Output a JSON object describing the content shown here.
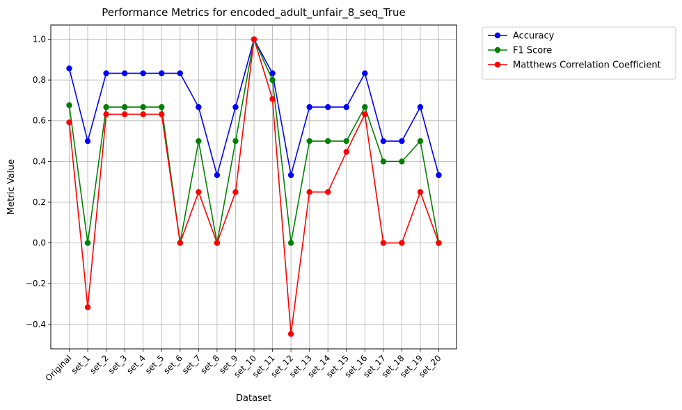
{
  "chart_data": {
    "type": "line",
    "title": "Performance Metrics for encoded_adult_unfair_8_seq_True",
    "xlabel": "Dataset",
    "ylabel": "Metric Value",
    "categories": [
      "Original",
      "set_1",
      "set_2",
      "set_3",
      "set_4",
      "set_5",
      "set_6",
      "set_7",
      "set_8",
      "set_9",
      "set_10",
      "set_11",
      "set_12",
      "set_13",
      "set_14",
      "set_15",
      "set_16",
      "set_17",
      "set_18",
      "set_19",
      "set_20"
    ],
    "ylim": [
      -0.52,
      1.07
    ],
    "yticks": [
      -0.4,
      -0.2,
      0.0,
      0.2,
      0.4,
      0.6,
      0.8,
      1.0
    ],
    "ytick_labels": [
      "−0.4",
      "−0.2",
      "0.0",
      "0.2",
      "0.4",
      "0.6",
      "0.8",
      "1.0"
    ],
    "grid": true,
    "legend_position": "outside-top-right",
    "series": [
      {
        "name": "Accuracy",
        "color": "#0000ff",
        "values": [
          0.857,
          0.5,
          0.833,
          0.833,
          0.833,
          0.833,
          0.833,
          0.667,
          0.333,
          0.667,
          1.0,
          0.833,
          0.333,
          0.667,
          0.667,
          0.667,
          0.833,
          0.5,
          0.5,
          0.667,
          0.333
        ]
      },
      {
        "name": "F1 Score",
        "color": "#008000",
        "values": [
          0.676,
          0.0,
          0.667,
          0.667,
          0.667,
          0.667,
          0.0,
          0.5,
          0.0,
          0.5,
          1.0,
          0.8,
          0.0,
          0.5,
          0.5,
          0.5,
          0.667,
          0.4,
          0.4,
          0.5,
          0.0
        ]
      },
      {
        "name": "Matthews Correlation Coefficient",
        "color": "#ff0000",
        "values": [
          0.592,
          -0.316,
          0.632,
          0.632,
          0.632,
          0.632,
          0.0,
          0.25,
          0.0,
          0.25,
          1.0,
          0.707,
          -0.447,
          0.25,
          0.25,
          0.447,
          0.632,
          0.0,
          0.0,
          0.25,
          0.0
        ]
      }
    ]
  }
}
